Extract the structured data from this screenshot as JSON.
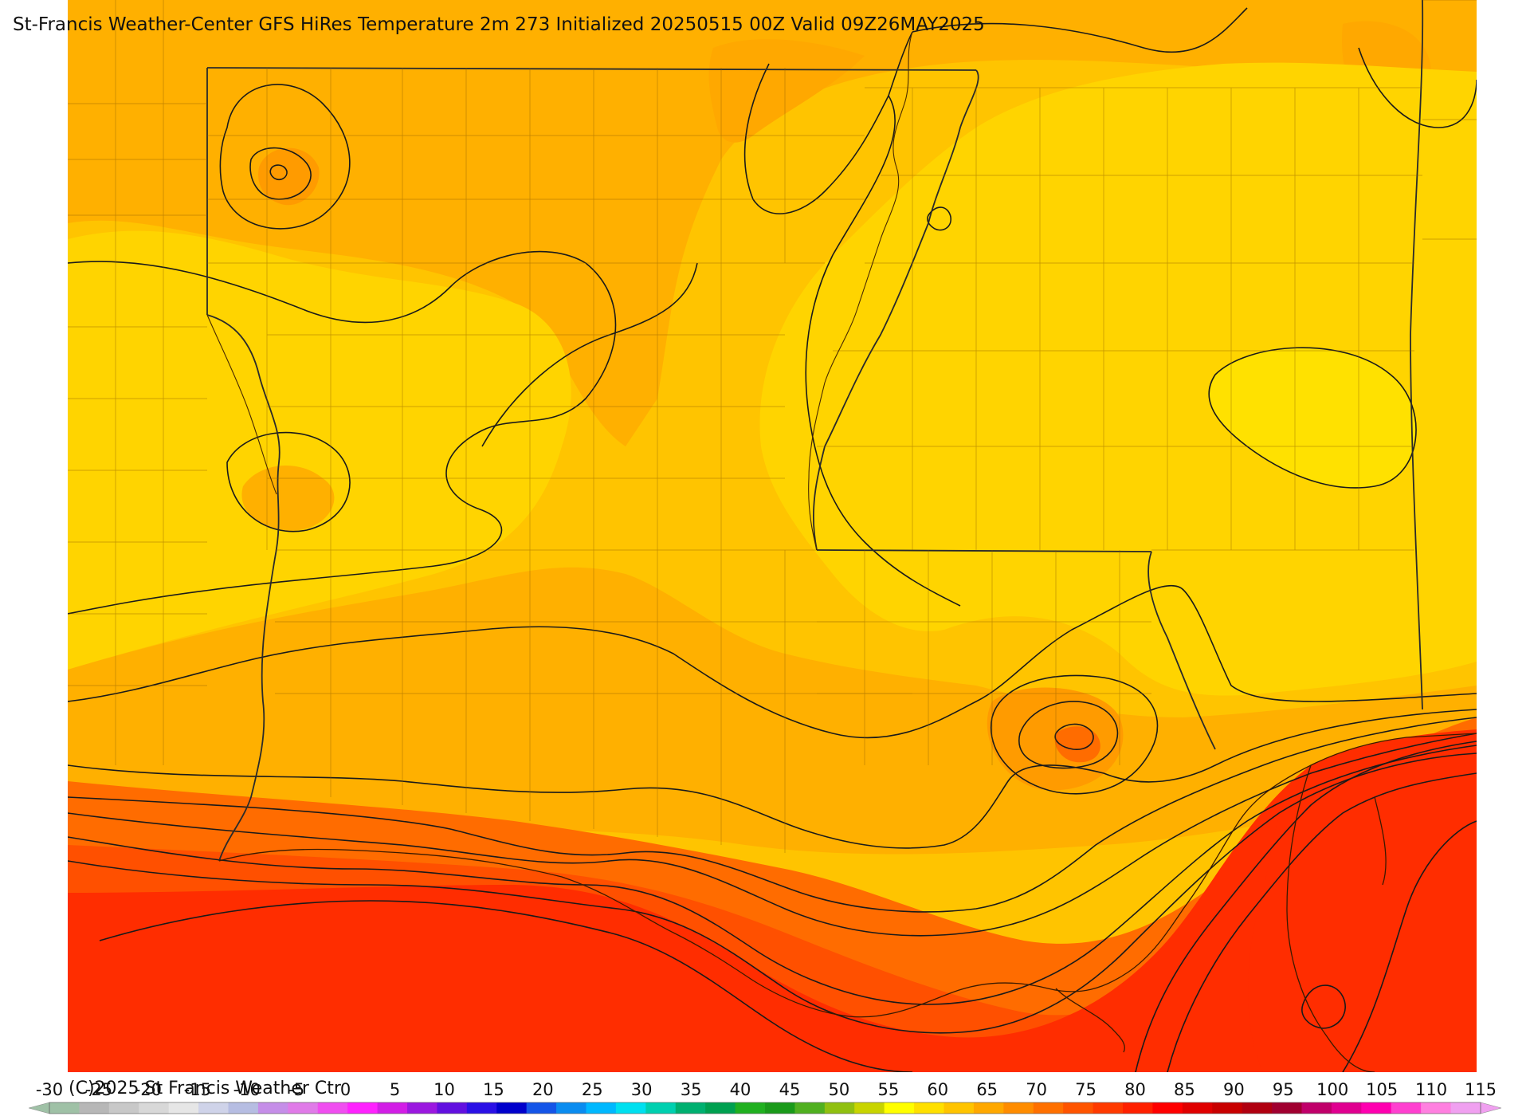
{
  "title": "St-Francis Weather-Center GFS HiRes Temperature 2m  273 Initialized 20250515 00Z Valid 09Z26MAY2025",
  "copyright": "(C)2025 St Francis Weather Ctr",
  "colorbar": {
    "ticks": [
      "-30",
      "-25",
      "-20",
      "-15",
      "-10",
      "-5",
      "0",
      "5",
      "10",
      "15",
      "20",
      "25",
      "30",
      "35",
      "40",
      "45",
      "50",
      "55",
      "60",
      "65",
      "70",
      "75",
      "80",
      "85",
      "90",
      "95",
      "100",
      "105",
      "110",
      "115"
    ],
    "colors": [
      "#9fc1a6",
      "#b7b7b7",
      "#c8c8c8",
      "#d8d8d8",
      "#e6e6e6",
      "#cfd3e9",
      "#b6bde2",
      "#c58ee8",
      "#e07be8",
      "#f04ef0",
      "#ff22ff",
      "#d21ee6",
      "#9b18e0",
      "#6210e0",
      "#2a10e6",
      "#0000cc",
      "#1455e8",
      "#0a8cf0",
      "#00b8ff",
      "#00e0f0",
      "#00d0b0",
      "#00b070",
      "#00a050",
      "#20b020",
      "#1a9a1a",
      "#50b020",
      "#90c010",
      "#c8d400",
      "#ffff00",
      "#ffe000",
      "#ffc400",
      "#ffa800",
      "#ff8c00",
      "#ff7000",
      "#ff5400",
      "#ff3a00",
      "#ff2000",
      "#ff0000",
      "#e00000",
      "#c80000",
      "#b00010",
      "#a00030",
      "#c0006a",
      "#e00090",
      "#ff00b0",
      "#ff40d0",
      "#ff80e0",
      "#f0a0f0"
    ]
  },
  "map": {
    "fill_colors": {
      "yellow_light": "#ffe100",
      "yellow": "#ffd400",
      "yellow_orange": "#ffc400",
      "orange_light": "#ffb000",
      "orange": "#ff9b00",
      "orange_dark": "#ff6c00",
      "red_orange": "#ff5000",
      "red": "#ff2d00"
    }
  }
}
